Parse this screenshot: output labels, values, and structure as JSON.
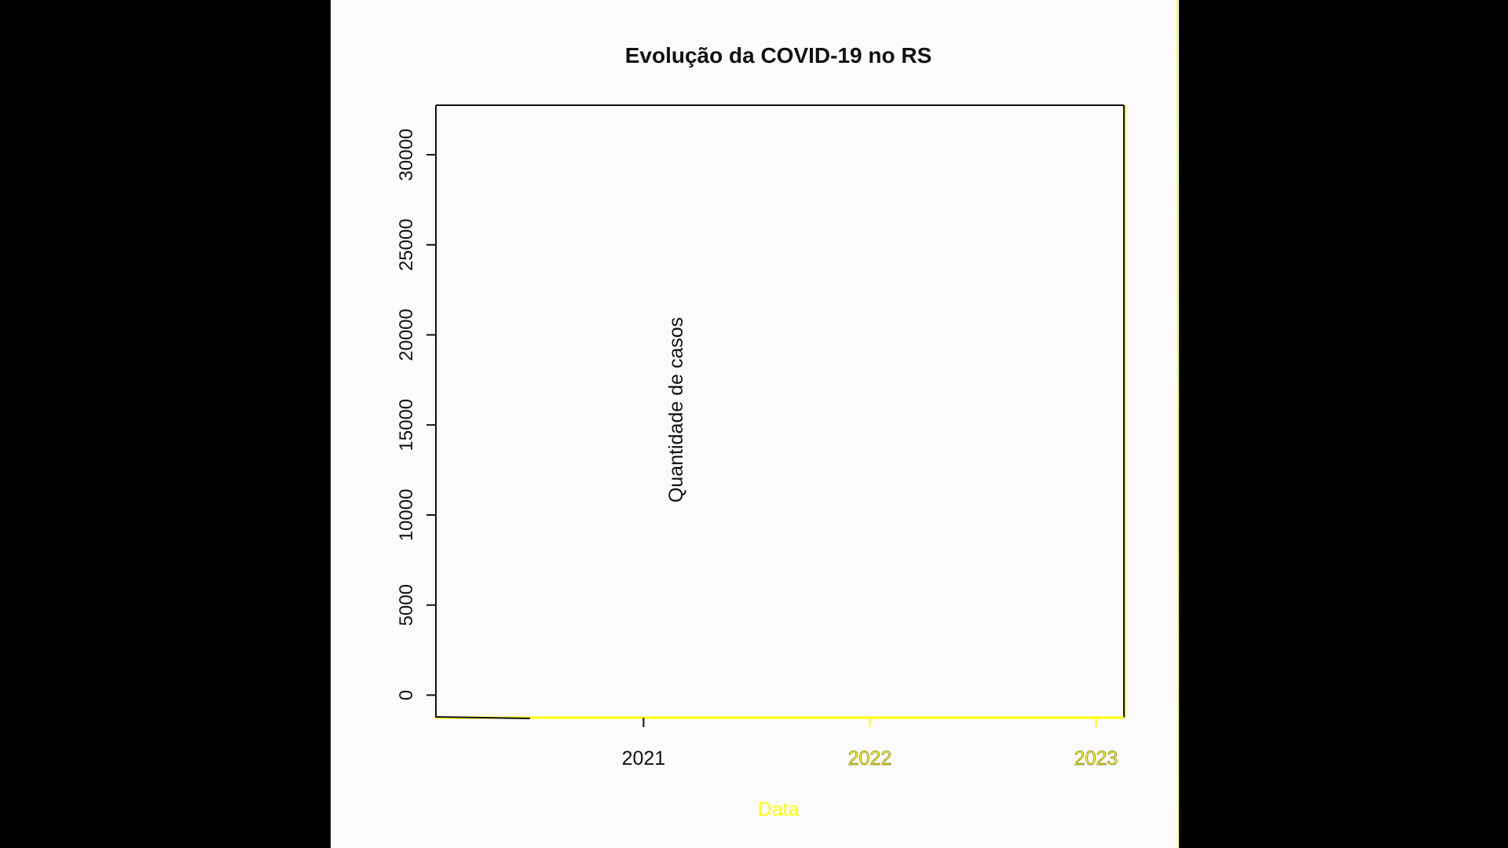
{
  "chart_data": {
    "type": "line",
    "title": "Evolução da COVID-19 no RS",
    "xlabel": "Data",
    "ylabel": "Quantidade de casos",
    "x_axis_kind": "date",
    "xlim": [
      "2020-02-01",
      "2023-02-15"
    ],
    "ylim": [
      -1250,
      32750
    ],
    "x_ticks": [
      {
        "value": "2021-01-01",
        "label": "2021"
      },
      {
        "value": "2022-01-01",
        "label": "2022"
      },
      {
        "value": "2023-01-01",
        "label": "2023"
      }
    ],
    "y_ticks": [
      {
        "value": 0,
        "label": "0"
      },
      {
        "value": 5000,
        "label": "5000"
      },
      {
        "value": 10000,
        "label": "10000"
      },
      {
        "value": 15000,
        "label": "15000"
      },
      {
        "value": 20000,
        "label": "20000"
      },
      {
        "value": 25000,
        "label": "25000"
      },
      {
        "value": 30000,
        "label": "30000"
      }
    ],
    "grid": false,
    "legend": "none",
    "series": [],
    "colors": {
      "background": "#000000",
      "panel": "#fbfbfd",
      "text": "#111111",
      "axis": "#111111",
      "highlight": "#ffff00"
    }
  }
}
